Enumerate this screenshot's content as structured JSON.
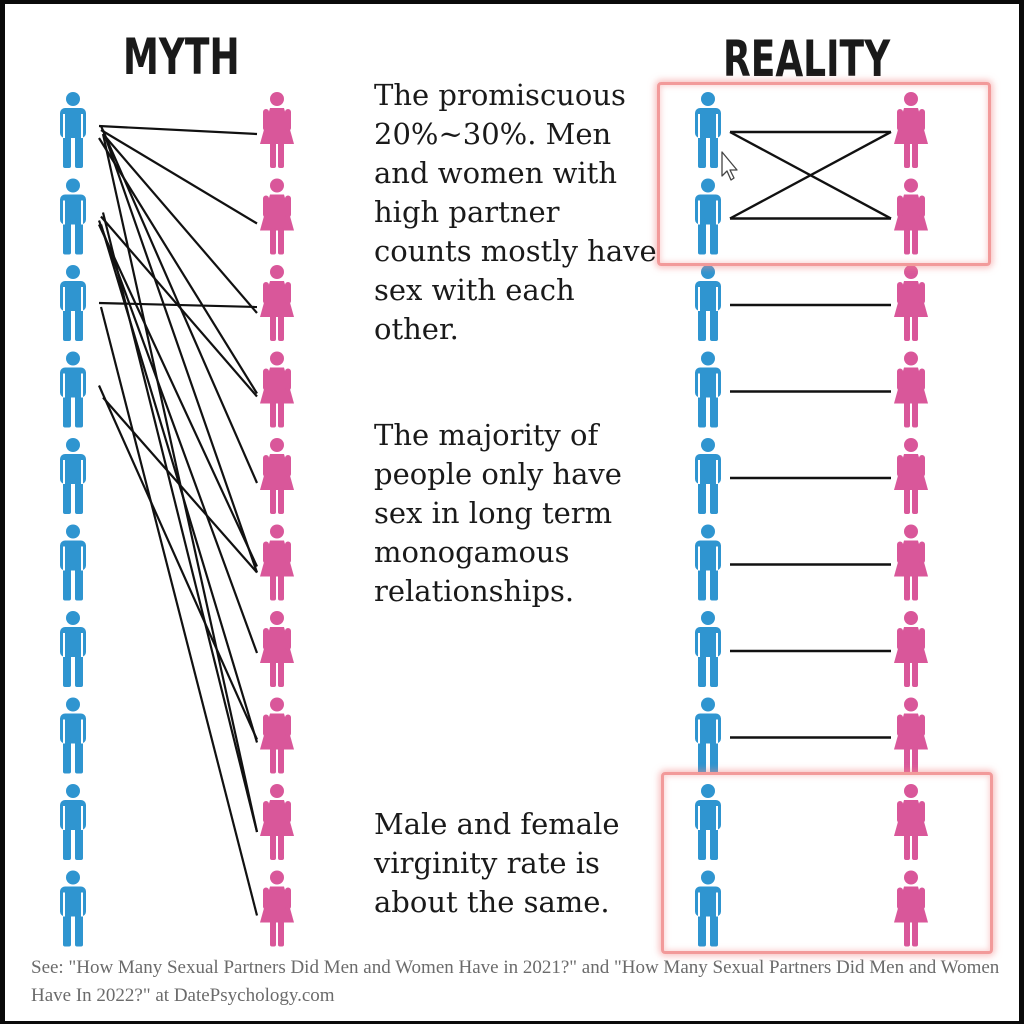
{
  "headings": {
    "myth": "MYTH",
    "reality": "REALITY"
  },
  "captions": {
    "promiscuous": "The promiscuous 20%~30%. Men and women with high partner counts mostly have sex with each other.",
    "majority": "The majority of people only have sex in long term monogamous relationships.",
    "virginity": "Male and female virginity rate is about the same."
  },
  "source_note": "See: \"How Many Sexual Partners Did Men and Women Have in 2021?\" and \"How Many Sexual Partners Did Men and Women Have In 2022?\" at DatePsychology.com",
  "colors": {
    "male": "#2f95d0",
    "female": "#d9579a",
    "line": "#111111",
    "highlight": "#f29a9a"
  },
  "icons": {
    "male": "male-person-icon",
    "female": "female-person-icon",
    "cursor": "mouse-cursor-icon"
  },
  "myth": {
    "men_count": 10,
    "women_count": 10,
    "links": [
      [
        0,
        0
      ],
      [
        0,
        1
      ],
      [
        0,
        2
      ],
      [
        0,
        3
      ],
      [
        0,
        4
      ],
      [
        0,
        5
      ],
      [
        1,
        6
      ],
      [
        1,
        7
      ],
      [
        1,
        8
      ],
      [
        2,
        2
      ],
      [
        2,
        9
      ],
      [
        3,
        5
      ],
      [
        3,
        7
      ],
      [
        1,
        3
      ],
      [
        0,
        8
      ],
      [
        1,
        5
      ]
    ]
  },
  "reality": {
    "men_count": 10,
    "women_count": 10,
    "links": [
      [
        0,
        0
      ],
      [
        0,
        1
      ],
      [
        1,
        0
      ],
      [
        1,
        1
      ],
      [
        2,
        2
      ],
      [
        3,
        3
      ],
      [
        4,
        4
      ],
      [
        5,
        5
      ],
      [
        6,
        6
      ],
      [
        7,
        7
      ]
    ],
    "promiscuous_group": [
      0,
      1
    ],
    "monogamous_group": [
      2,
      3,
      4,
      5,
      6,
      7
    ],
    "virgin_group": [
      8,
      9
    ]
  }
}
